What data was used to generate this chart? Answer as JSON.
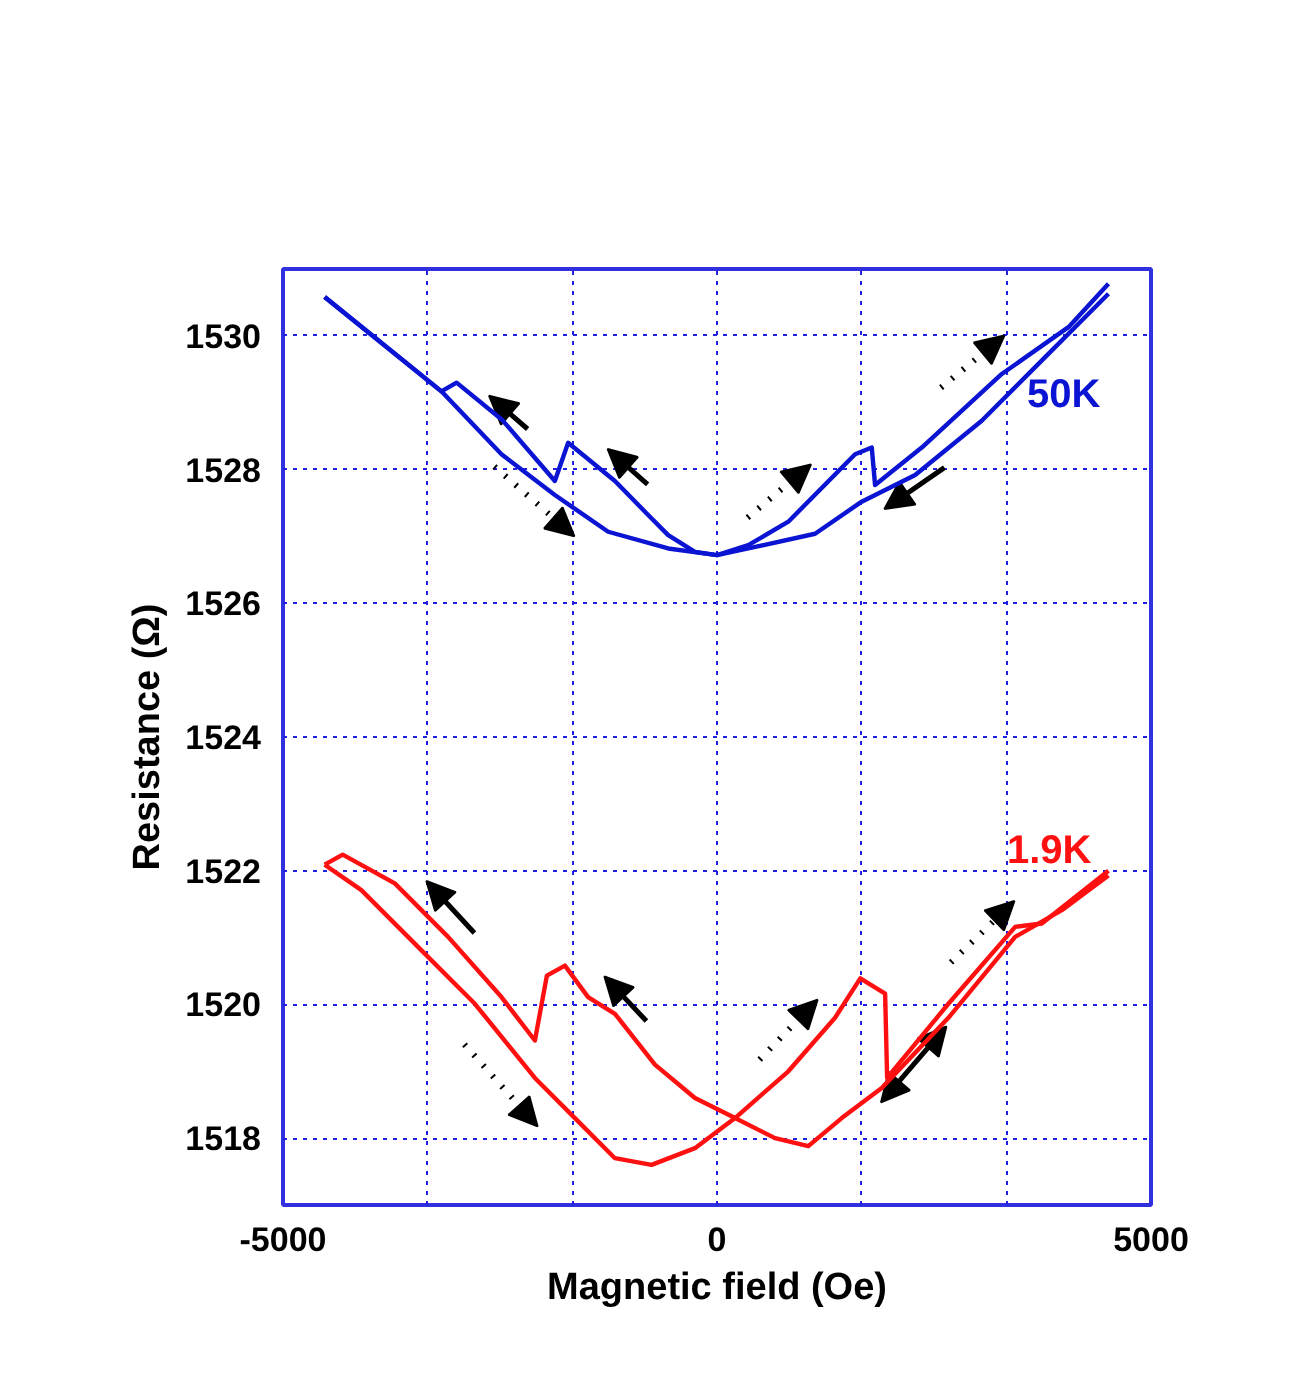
{
  "chart_data": {
    "type": "line",
    "xlabel": "Magnetic field (Oe)",
    "ylabel": "Resistance (Ω)",
    "xlim": [
      -5000,
      5000
    ],
    "ylim": [
      1517,
      1531
    ],
    "xticks": [
      -5000,
      {
        "value": -3333.3,
        "label": null
      },
      {
        "value": -1666.7,
        "label": null
      },
      0,
      {
        "value": 1666.7,
        "label": null
      },
      {
        "value": 3333.3,
        "label": null
      },
      5000
    ],
    "yticks": [
      1518,
      1520,
      1522,
      1524,
      1526,
      1528,
      1530
    ],
    "grid": true,
    "marker": "none",
    "line_style": "solid",
    "series": [
      {
        "name": "50K",
        "color": "#0a14d2",
        "x": [
          -4520,
          -3175,
          -3000,
          -2480,
          -1868,
          -1715,
          -1176,
          -830,
          -562,
          -254,
          0,
          360,
          1130,
          1667,
          2283,
          3050,
          3818,
          4510
        ],
        "values": [
          1530.58,
          1529.17,
          1529.3,
          1528.75,
          1527.83,
          1528.4,
          1527.83,
          1527.37,
          1527.02,
          1526.77,
          1526.72,
          1526.82,
          1527.04,
          1527.52,
          1527.92,
          1528.73,
          1529.73,
          1530.63
        ]
      },
      {
        "color": "#0a14d2",
        "x": [
          -4520,
          -3175,
          -2483,
          -1868,
          -1254,
          -562,
          0,
          360,
          822,
          1591,
          1783,
          1821,
          2359,
          3281,
          4049,
          4510
        ],
        "values": [
          1530.58,
          1529.17,
          1528.23,
          1527.62,
          1527.07,
          1526.82,
          1526.72,
          1526.87,
          1527.22,
          1528.23,
          1528.33,
          1527.77,
          1528.33,
          1529.43,
          1530.13,
          1530.78
        ]
      },
      {
        "name": "1.9K",
        "color": "#ff1010",
        "x": [
          -4520,
          -4312,
          -3712,
          -3098,
          -2483,
          -2098,
          -1960,
          -1752,
          -1485,
          -1176,
          -715,
          -254,
          208,
          669,
          1052,
          1437,
          1898,
          2666,
          3435,
          3973,
          4510
        ],
        "values": [
          1522.09,
          1522.24,
          1521.81,
          1521.01,
          1520.11,
          1519.46,
          1520.43,
          1520.58,
          1520.11,
          1519.86,
          1519.1,
          1518.6,
          1518.3,
          1518.0,
          1517.88,
          1518.3,
          1518.75,
          1519.8,
          1521.01,
          1521.41,
          1521.93
        ]
      },
      {
        "color": "#ff1010",
        "x": [
          -4520,
          -4097,
          -3482,
          -2790,
          -2098,
          -1637,
          -1176,
          -754,
          -254,
          208,
          822,
          1360,
          1651,
          1937,
          1960,
          2666,
          3435,
          3742,
          4510
        ],
        "values": [
          1522.09,
          1521.71,
          1520.91,
          1520.01,
          1518.9,
          1518.3,
          1517.7,
          1517.6,
          1517.85,
          1518.3,
          1519.0,
          1519.8,
          1520.39,
          1520.16,
          1518.9,
          1520.01,
          1521.16,
          1521.21,
          1522.0
        ]
      }
    ]
  }
}
